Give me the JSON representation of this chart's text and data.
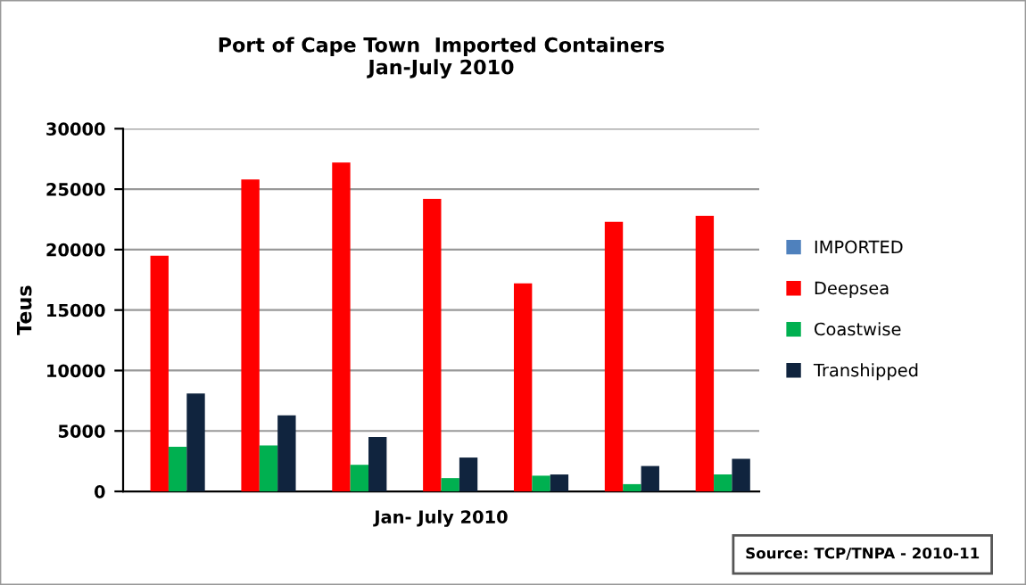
{
  "chart_data": {
    "type": "bar",
    "title": "Port of Cape Town  Imported Containers\nJan-July 2010",
    "xlabel": "Jan- July 2010",
    "ylabel": "Teus",
    "categories": [
      null,
      null,
      null,
      null,
      null,
      null,
      null
    ],
    "series": [
      {
        "name": "IMPORTED",
        "color": "#4f81bd",
        "values": [
          0,
          0,
          0,
          0,
          0,
          0,
          0
        ]
      },
      {
        "name": "Deepsea",
        "color": "#ff0000",
        "values": [
          19500,
          25800,
          27200,
          24200,
          17200,
          22300,
          22800
        ]
      },
      {
        "name": "Coastwise",
        "color": "#00b050",
        "values": [
          3700,
          3800,
          2200,
          1100,
          1300,
          600,
          1400
        ]
      },
      {
        "name": "Transhipped",
        "color": "#10243e",
        "values": [
          8100,
          6300,
          4500,
          2800,
          1400,
          2100,
          2700
        ]
      }
    ],
    "ylim": [
      0,
      30000
    ],
    "yticks": [
      0,
      5000,
      10000,
      15000,
      20000,
      25000,
      30000
    ],
    "grid": "y",
    "legend": "right",
    "annotations": [
      "Source: TCP/TNPA - 2010-11"
    ]
  }
}
